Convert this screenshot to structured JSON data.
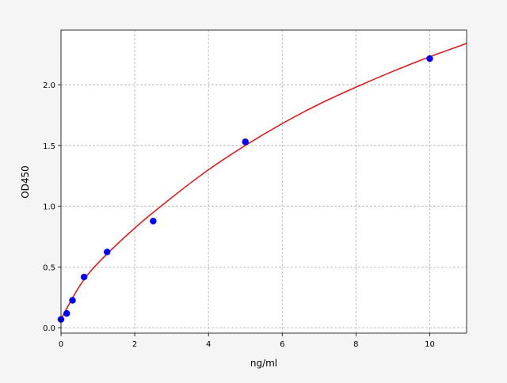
{
  "chart_data": {
    "type": "scatter",
    "title": "",
    "xlabel": "ng/ml",
    "ylabel": "OD450",
    "xlim": [
      0,
      11
    ],
    "ylim": [
      -0.045,
      2.45
    ],
    "xticks": [
      0,
      2,
      4,
      6,
      8,
      10
    ],
    "yticks": [
      0.0,
      0.5,
      1.0,
      1.5,
      2.0
    ],
    "xtick_labels": [
      "0",
      "2",
      "4",
      "6",
      "8",
      "10"
    ],
    "ytick_labels": [
      "0.0",
      "0.5",
      "1.0",
      "1.5",
      "2.0"
    ],
    "grid": true,
    "points": {
      "color": "#0000ff",
      "x": [
        0,
        0.156,
        0.312,
        0.625,
        1.25,
        2.5,
        5,
        10
      ],
      "y": [
        0.068,
        0.117,
        0.225,
        0.417,
        0.623,
        0.877,
        1.53,
        2.215
      ]
    },
    "fit_curve": {
      "color": "#e41a1c",
      "x": [
        0,
        0.5,
        1,
        2,
        3,
        4,
        5,
        6,
        7,
        8,
        9,
        10,
        11
      ],
      "y": [
        0.07,
        0.34,
        0.53,
        0.82,
        1.07,
        1.3,
        1.5,
        1.68,
        1.84,
        1.98,
        2.11,
        2.23,
        2.34
      ]
    }
  }
}
